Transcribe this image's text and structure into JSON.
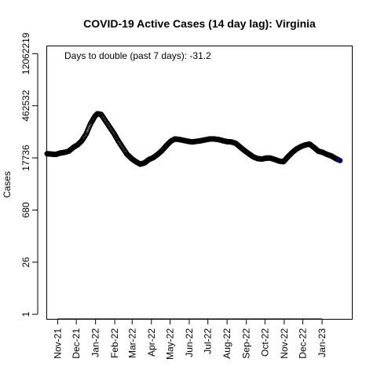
{
  "chart_data": {
    "type": "scatter",
    "title": "COVID-19 Active Cases (14 day lag): Virginia",
    "ylabel": "Cases",
    "xlabel": "",
    "annotation": "Days to double (past 7 days): -31.2",
    "y_scale": "log",
    "y_ticks": [
      "1",
      "26",
      "680",
      "17736",
      "462532",
      "12062219"
    ],
    "y_tick_values": [
      1,
      26,
      680,
      17736,
      462532,
      12062219
    ],
    "ylim": [
      0.75,
      20000000
    ],
    "x_ticks": [
      "Nov-21",
      "Dec-21",
      "Jan-22",
      "Feb-22",
      "Mar-22",
      "Apr-22",
      "May-22",
      "Jun-22",
      "Jul-22",
      "Aug-22",
      "Sep-22",
      "Oct-22",
      "Nov-22",
      "Dec-22",
      "Jan-23"
    ],
    "xlim": [
      "2021-10-15",
      "2023-02-18"
    ],
    "marker_color": "#000000",
    "last_marker_color": "#1a1aff",
    "series": [
      {
        "points": [
          [
            "2021-10-15",
            23000
          ],
          [
            "2021-10-22",
            22500
          ],
          [
            "2021-10-29",
            22000
          ],
          [
            "2021-11-05",
            24000
          ],
          [
            "2021-11-12",
            25000
          ],
          [
            "2021-11-19",
            27000
          ],
          [
            "2021-11-26",
            34000
          ],
          [
            "2021-12-03",
            40000
          ],
          [
            "2021-12-10",
            52000
          ],
          [
            "2021-12-17",
            80000
          ],
          [
            "2021-12-24",
            150000
          ],
          [
            "2021-12-31",
            240000
          ],
          [
            "2022-01-04",
            280000
          ],
          [
            "2022-01-10",
            270000
          ],
          [
            "2022-01-17",
            180000
          ],
          [
            "2022-01-24",
            120000
          ],
          [
            "2022-01-31",
            80000
          ],
          [
            "2022-02-07",
            50000
          ],
          [
            "2022-02-14",
            33000
          ],
          [
            "2022-02-21",
            22000
          ],
          [
            "2022-02-28",
            17000
          ],
          [
            "2022-03-07",
            14000
          ],
          [
            "2022-03-14",
            12000
          ],
          [
            "2022-03-21",
            13000
          ],
          [
            "2022-03-28",
            16000
          ],
          [
            "2022-04-04",
            18000
          ],
          [
            "2022-04-11",
            22000
          ],
          [
            "2022-04-18",
            28000
          ],
          [
            "2022-04-25",
            38000
          ],
          [
            "2022-05-02",
            50000
          ],
          [
            "2022-05-09",
            58000
          ],
          [
            "2022-05-16",
            56000
          ],
          [
            "2022-05-23",
            53000
          ],
          [
            "2022-05-30",
            50000
          ],
          [
            "2022-06-06",
            48000
          ],
          [
            "2022-06-13",
            50000
          ],
          [
            "2022-06-20",
            52000
          ],
          [
            "2022-06-27",
            55000
          ],
          [
            "2022-07-04",
            58000
          ],
          [
            "2022-07-11",
            58000
          ],
          [
            "2022-07-18",
            56000
          ],
          [
            "2022-07-25",
            52000
          ],
          [
            "2022-08-01",
            49000
          ],
          [
            "2022-08-08",
            48000
          ],
          [
            "2022-08-15",
            44000
          ],
          [
            "2022-08-22",
            35000
          ],
          [
            "2022-08-29",
            28000
          ],
          [
            "2022-09-05",
            23000
          ],
          [
            "2022-09-12",
            19000
          ],
          [
            "2022-09-19",
            17000
          ],
          [
            "2022-09-26",
            16500
          ],
          [
            "2022-10-03",
            17500
          ],
          [
            "2022-10-10",
            17500
          ],
          [
            "2022-10-17",
            16000
          ],
          [
            "2022-10-24",
            14500
          ],
          [
            "2022-10-31",
            14000
          ],
          [
            "2022-11-07",
            19000
          ],
          [
            "2022-11-14",
            25000
          ],
          [
            "2022-11-21",
            31000
          ],
          [
            "2022-11-28",
            36000
          ],
          [
            "2022-12-05",
            40000
          ],
          [
            "2022-12-12",
            42000
          ],
          [
            "2022-12-19",
            34000
          ],
          [
            "2022-12-26",
            27000
          ],
          [
            "2023-01-02",
            25000
          ],
          [
            "2023-01-09",
            22000
          ],
          [
            "2023-01-16",
            20000
          ],
          [
            "2023-01-23",
            17000
          ],
          [
            "2023-01-30",
            15000
          ]
        ]
      }
    ]
  }
}
